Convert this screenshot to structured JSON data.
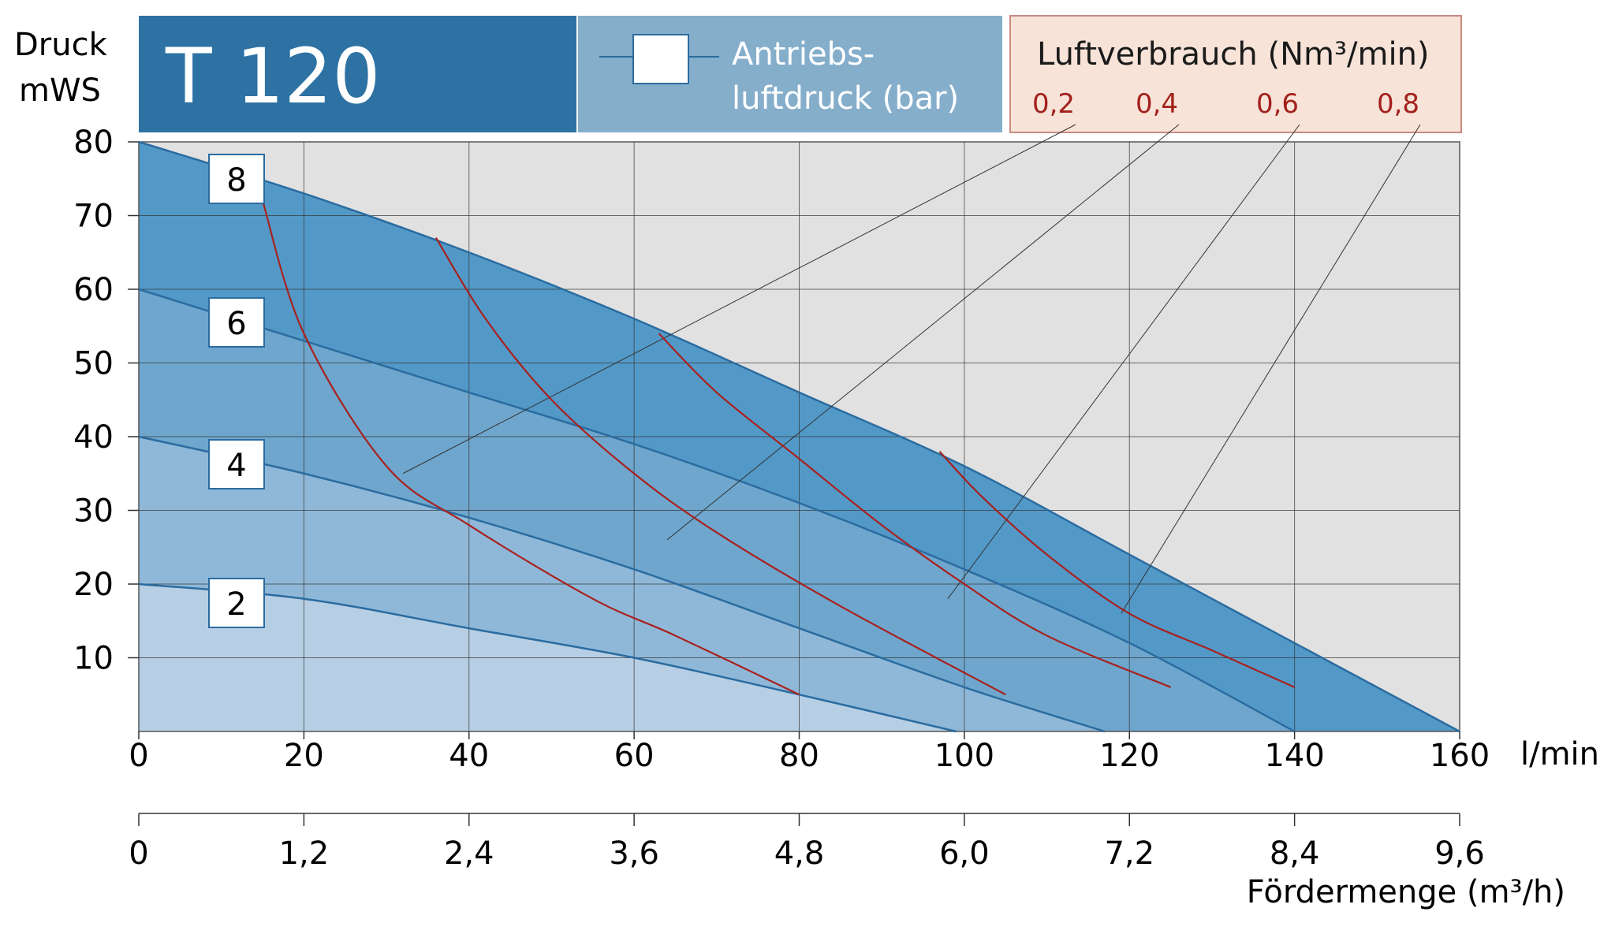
{
  "chart_data": {
    "type": "line",
    "title": "T 120",
    "y_label_line1": "Druck",
    "y_label_line2": "mWS",
    "x_unit": "l/min",
    "x2_label": "Fördermenge (m³/h)",
    "xlim": [
      0,
      160
    ],
    "ylim": [
      0,
      80
    ],
    "x_ticks": [
      "0",
      "20",
      "40",
      "60",
      "80",
      "100",
      "120",
      "140",
      "160"
    ],
    "x2_ticks": [
      "0",
      "1,2",
      "2,4",
      "3,6",
      "4,8",
      "6,0",
      "7,2",
      "8,4",
      "9,6"
    ],
    "y_ticks": [
      "80",
      "70",
      "60",
      "50",
      "40",
      "30",
      "20",
      "10"
    ],
    "legend_pressure": {
      "label_line1": "Antriebs-",
      "label_line2": "luftdruck (bar)"
    },
    "legend_air": {
      "title": "Luftverbrauch (Nm³/min)",
      "values": [
        "0,2",
        "0,4",
        "0,6",
        "0,8"
      ]
    },
    "series": [
      {
        "name": "8",
        "x": [
          0,
          20,
          40,
          60,
          80,
          100,
          120,
          140,
          160
        ],
        "y": [
          80,
          73,
          65,
          56,
          46,
          36,
          24,
          12,
          0
        ]
      },
      {
        "name": "6",
        "x": [
          0,
          20,
          40,
          60,
          80,
          100,
          120,
          140
        ],
        "y": [
          60,
          53,
          46,
          39,
          31,
          22,
          12,
          0
        ]
      },
      {
        "name": "4",
        "x": [
          0,
          20,
          40,
          60,
          80,
          100,
          117
        ],
        "y": [
          40,
          35,
          29,
          22,
          14,
          6,
          0
        ]
      },
      {
        "name": "2",
        "x": [
          0,
          20,
          40,
          60,
          80,
          99
        ],
        "y": [
          20,
          18,
          14,
          10,
          5,
          0
        ]
      }
    ],
    "air_consumption_curves": [
      {
        "name": "0,2",
        "x": [
          15,
          20,
          30,
          40,
          55,
          65,
          80
        ],
        "y": [
          72,
          54,
          36,
          28,
          18,
          13,
          5
        ]
      },
      {
        "name": "0,4",
        "x": [
          36,
          42,
          50,
          60,
          70,
          85,
          105
        ],
        "y": [
          67,
          56,
          45,
          35,
          27,
          17,
          5
        ]
      },
      {
        "name": "0,6",
        "x": [
          63,
          70,
          80,
          90,
          100,
          110,
          125
        ],
        "y": [
          54,
          46,
          37,
          28,
          20,
          13,
          6
        ]
      },
      {
        "name": "0,8",
        "x": [
          97,
          102,
          110,
          120,
          130,
          140
        ],
        "y": [
          38,
          32,
          24,
          16,
          11,
          6
        ]
      }
    ],
    "air_leader_endpoints": [
      {
        "x": 32,
        "y": 35
      },
      {
        "x": 64,
        "y": 26
      },
      {
        "x": 98,
        "y": 18
      },
      {
        "x": 119,
        "y": 16
      }
    ],
    "colors": {
      "title_bar": "#2e72a4",
      "legend_bar": "#85aecb",
      "air_bar": "#f7e3d8",
      "air_bar_border": "#c98a82",
      "air_text": "#a3201c",
      "plot_bg": "#e1e1e1",
      "band_8": "#5399c8",
      "band_6": "#6ea6cd",
      "band_4": "#8fb8d8",
      "band_2": "#b7cfe4",
      "curve_blue": "#2b6ca0",
      "curve_red": "#a8211e",
      "grid": "#333333"
    }
  }
}
